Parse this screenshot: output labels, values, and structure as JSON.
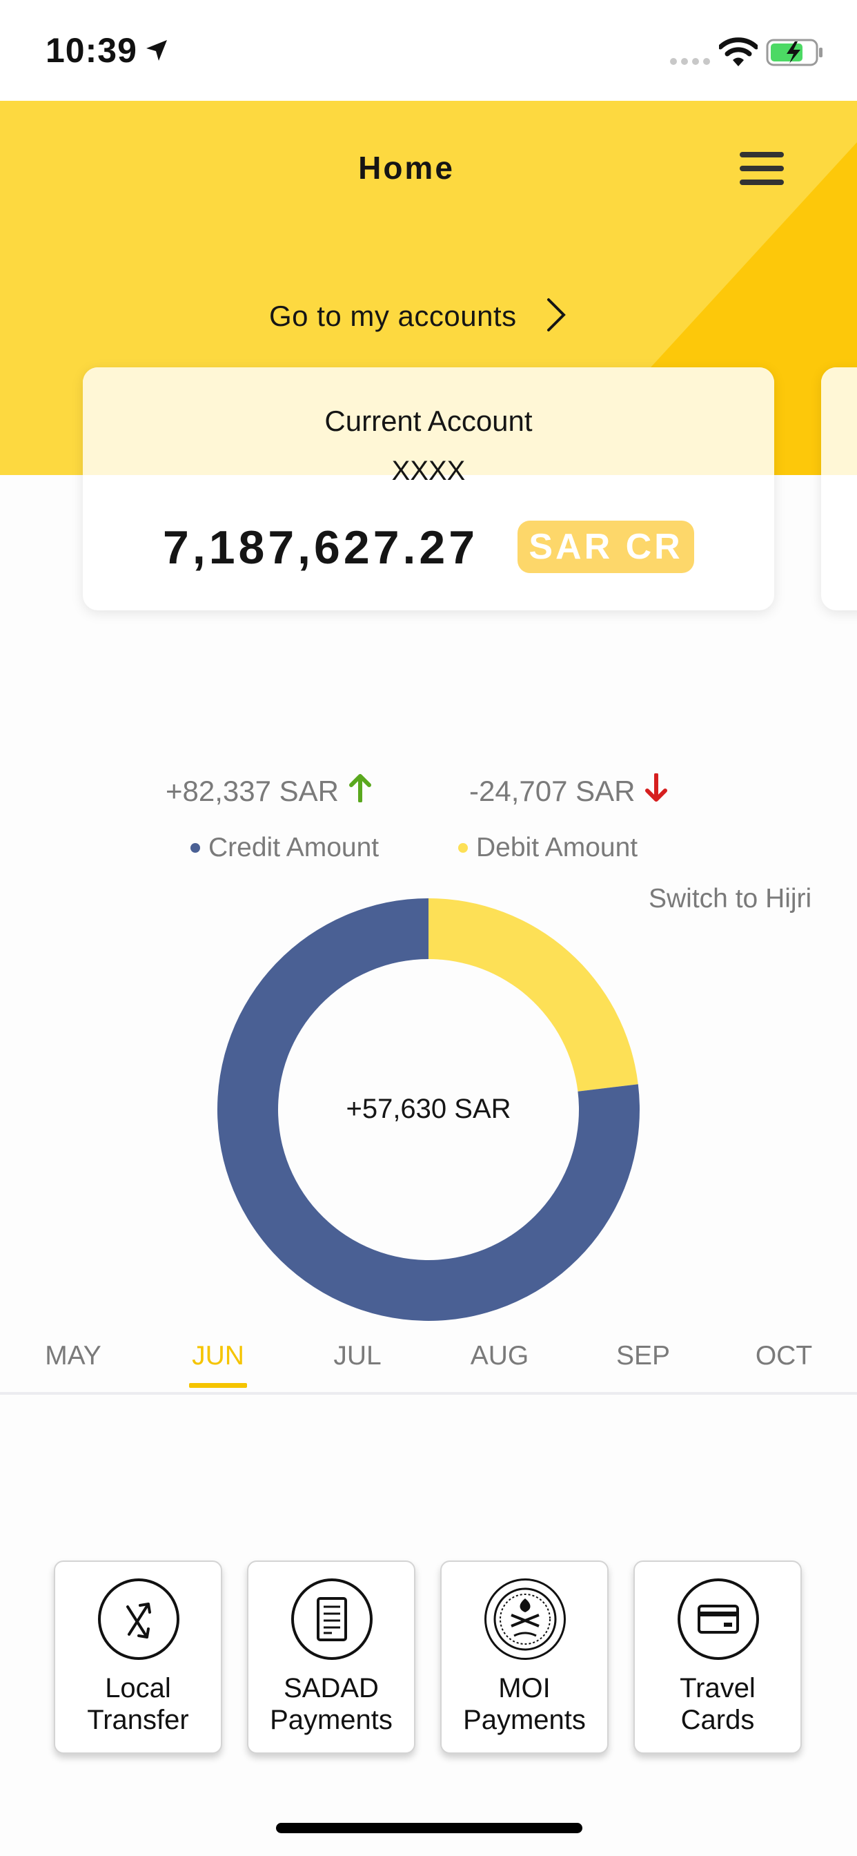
{
  "status_bar": {
    "time": "10:39",
    "icons": [
      "location-arrow-icon",
      "signal-icon",
      "wifi-icon",
      "battery-charging-icon"
    ]
  },
  "header": {
    "title": "Home",
    "menu_icon": "hamburger-menu-icon",
    "accounts_link": "Go to my accounts"
  },
  "account_card": {
    "name": "Current Account",
    "number": "XXXX",
    "balance": "7,187,627.27",
    "currency_badge": "SAR CR"
  },
  "summary": {
    "credit_total": "+82,337 SAR",
    "debit_total": "-24,707 SAR",
    "legend_credit": "Credit Amount",
    "legend_debit": "Debit Amount",
    "switch_calendar": "Switch to Hijri",
    "net_total": "+57,630 SAR"
  },
  "chart_data": {
    "type": "pie",
    "categories": [
      "Credit Amount",
      "Debit Amount"
    ],
    "values": [
      82337,
      24707
    ],
    "colors": [
      "#4a6094",
      "#fde056"
    ],
    "center_label": "+57,630 SAR",
    "title": ""
  },
  "month_tabs": {
    "items": [
      "MAY",
      "JUN",
      "JUL",
      "AUG",
      "SEP",
      "OCT"
    ],
    "active_index": 1
  },
  "quick_actions": [
    {
      "label_line1": "Local",
      "label_line2": "Transfer",
      "icon": "transfer-arrows-icon"
    },
    {
      "label_line1": "SADAD",
      "label_line2": "Payments",
      "icon": "bill-receipt-icon"
    },
    {
      "label_line1": "MOI",
      "label_line2": "Payments",
      "icon": "moi-emblem-icon"
    },
    {
      "label_line1": "Travel",
      "label_line2": "Cards",
      "icon": "credit-card-icon"
    }
  ],
  "colors": {
    "brand_yellow": "#fdd940",
    "credit_blue": "#4a6094",
    "debit_yellow": "#fde056",
    "up_arrow_green": "#5aa81e",
    "down_arrow_red": "#d61f1f",
    "badge_yellow": "#fdd76a"
  }
}
